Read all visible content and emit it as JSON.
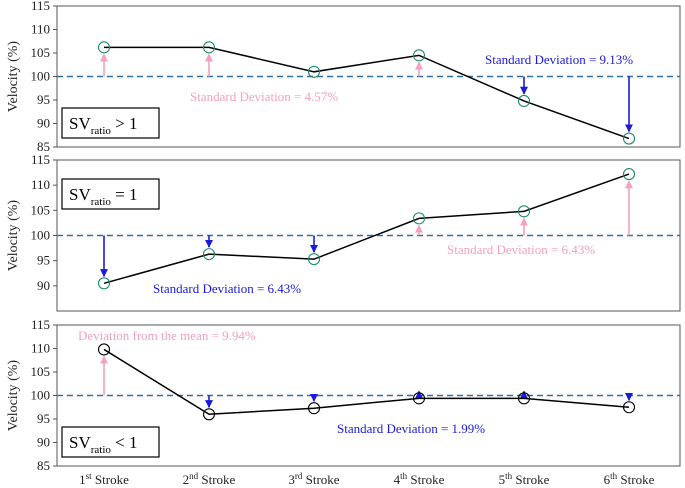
{
  "chart_data": [
    {
      "type": "line",
      "id": "panel-1",
      "ylabel": "Velocity (%)",
      "ylim": [
        85,
        115
      ],
      "yticks": [
        85,
        90,
        95,
        100,
        105,
        110,
        115
      ],
      "categories_sup": [
        "st",
        "nd",
        "rd",
        "th",
        "th",
        "th"
      ],
      "values": [
        106.2,
        106.2,
        101.0,
        104.5,
        94.8,
        86.8
      ],
      "mean": 100,
      "box_base": "SV",
      "box_sub": "ratio",
      "box_rest": " > 1",
      "annotations": [
        {
          "text": "Standard Deviation = 4.57%",
          "color": "#f4a0c0"
        },
        {
          "text": "Standard Deviation = 9.13%",
          "color": "#1a1adb"
        }
      ]
    },
    {
      "type": "line",
      "id": "panel-2",
      "ylabel": "Velocity (%)",
      "ylim": [
        85,
        115
      ],
      "yticks": [
        90,
        95,
        100,
        105,
        110,
        115
      ],
      "values": [
        90.5,
        96.3,
        95.3,
        103.4,
        104.8,
        112.2
      ],
      "mean": 100,
      "box_base": "SV",
      "box_sub": "ratio",
      "box_rest": " = 1",
      "annotations": [
        {
          "text": "Standard Deviation = 6.43%",
          "color": "#1a1adb"
        },
        {
          "text": "Standard Deviation = 6.43%",
          "color": "#f4a0c0"
        }
      ]
    },
    {
      "type": "line",
      "id": "panel-3",
      "ylabel": "Velocity (%)",
      "ylim": [
        85,
        115
      ],
      "yticks": [
        85,
        90,
        95,
        100,
        105,
        110,
        115
      ],
      "values": [
        109.8,
        96.0,
        97.3,
        99.4,
        99.4,
        97.5
      ],
      "mean": 100,
      "box_base": "SV",
      "box_sub": "ratio",
      "box_rest": " < 1",
      "annotations": [
        {
          "text": "Deviation from the mean = 9.94%",
          "color": "#f4a0c0"
        },
        {
          "text": "Standard Deviation = 1.99%",
          "color": "#1a1adb"
        }
      ]
    }
  ],
  "x_categories": [
    {
      "num": "1",
      "sup": "st",
      "word": " Stroke"
    },
    {
      "num": "2",
      "sup": "nd",
      "word": " Stroke"
    },
    {
      "num": "3",
      "sup": "rd",
      "word": " Stroke"
    },
    {
      "num": "4",
      "sup": "th",
      "word": " Stroke"
    },
    {
      "num": "5",
      "sup": "th",
      "word": " Stroke"
    },
    {
      "num": "6",
      "sup": "th",
      "word": " Stroke"
    }
  ],
  "colors": {
    "up_arrow": "#f4a0c0",
    "down_arrow": "#1a1adb",
    "mean_line": "#2e6f9e",
    "marker_panel12": "#1f8a70",
    "marker_panel3": "#000000",
    "line": "#000000"
  }
}
